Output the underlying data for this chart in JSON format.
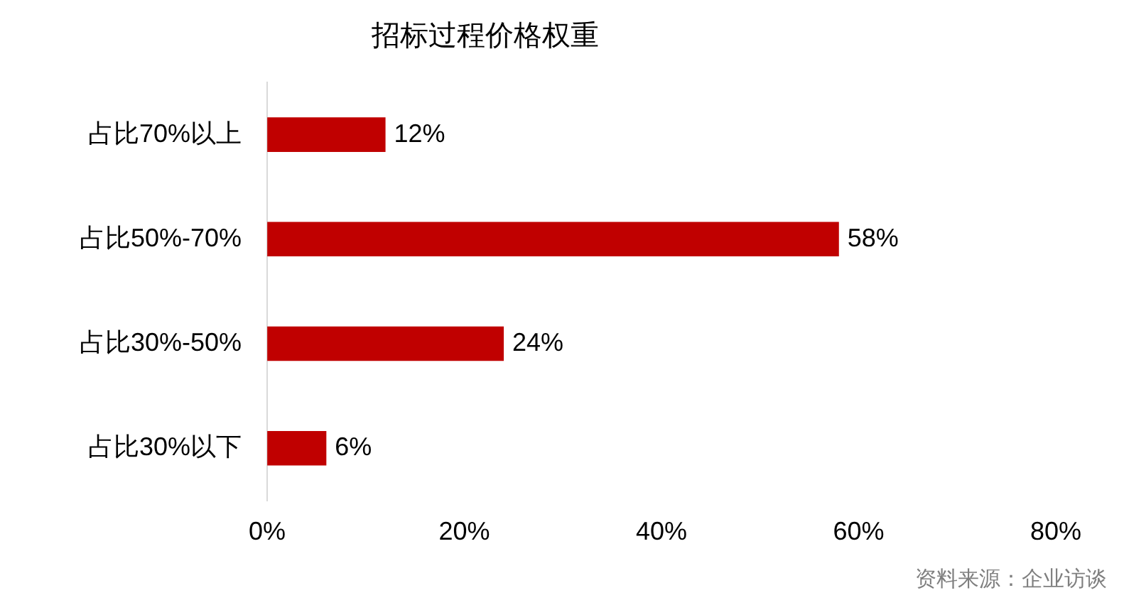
{
  "chart_data": {
    "type": "bar",
    "orientation": "horizontal",
    "title": "招标过程价格权重",
    "categories": [
      "占比70%以上",
      "占比50%-70%",
      "占比30%-50%",
      "占比30%以下"
    ],
    "values": [
      12,
      58,
      24,
      6
    ],
    "color": "#c00000",
    "value_labels": [
      "12%",
      "58%",
      "24%",
      "6%"
    ],
    "xlim": [
      0,
      80
    ],
    "xticks": [
      {
        "value": 0,
        "label": "0%"
      },
      {
        "value": 20,
        "label": "20%"
      },
      {
        "value": 40,
        "label": "40%"
      },
      {
        "value": 60,
        "label": "60%"
      },
      {
        "value": 80,
        "label": "80%"
      }
    ],
    "grid": false,
    "legend": false,
    "annotations": [
      "资料来源：企业访谈"
    ]
  }
}
